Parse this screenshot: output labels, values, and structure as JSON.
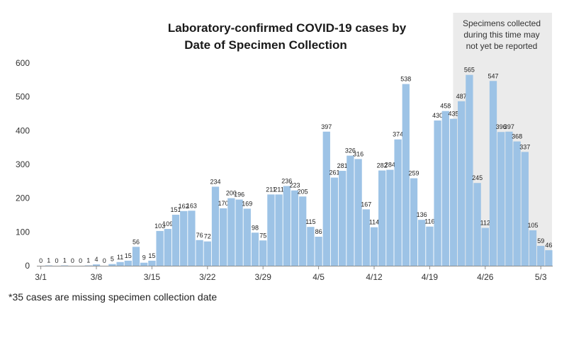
{
  "chart_data": {
    "type": "bar",
    "title_line1": "Laboratory-confirmed COVID-19 cases by",
    "title_line2": "Date of Specimen Collection",
    "annotation_lines": [
      "Specimens collected",
      "during this time may",
      "not yet be reported"
    ],
    "footnote": "*35  cases are missing specimen collection date",
    "ylim": [
      0,
      600
    ],
    "yticks": [
      0,
      100,
      200,
      300,
      400,
      500,
      600
    ],
    "xtick_labels": [
      {
        "index": 0,
        "label": "3/1"
      },
      {
        "index": 7,
        "label": "3/8"
      },
      {
        "index": 14,
        "label": "3/15"
      },
      {
        "index": 21,
        "label": "3/22"
      },
      {
        "index": 28,
        "label": "3/29"
      },
      {
        "index": 35,
        "label": "4/5"
      },
      {
        "index": 42,
        "label": "4/12"
      },
      {
        "index": 49,
        "label": "4/19"
      },
      {
        "index": 56,
        "label": "4/26"
      },
      {
        "index": 63,
        "label": "5/3"
      }
    ],
    "shaded_from_index": 52,
    "bar_color": "#9dc3e6",
    "shade_color": "#ebebeb",
    "values": [
      0,
      1,
      0,
      1,
      0,
      0,
      1,
      4,
      0,
      5,
      11,
      15,
      56,
      9,
      15,
      103,
      109,
      151,
      162,
      163,
      76,
      72,
      234,
      170,
      200,
      196,
      169,
      98,
      75,
      211,
      211,
      236,
      223,
      205,
      115,
      86,
      397,
      261,
      281,
      326,
      316,
      167,
      114,
      282,
      284,
      374,
      538,
      259,
      136,
      116,
      430,
      458,
      435,
      487,
      565,
      245,
      112,
      547,
      396,
      397,
      368,
      337,
      105,
      59,
      46
    ]
  }
}
